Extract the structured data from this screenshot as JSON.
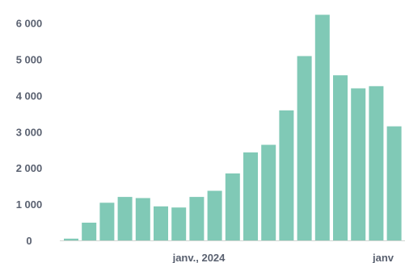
{
  "chart_data": {
    "type": "bar",
    "title": "",
    "xlabel": "",
    "ylabel": "",
    "ylim": [
      0,
      6300
    ],
    "yticks": [
      0,
      1000,
      2000,
      3000,
      4000,
      5000,
      6000
    ],
    "ytick_labels": [
      "0",
      "1 000",
      "2 000",
      "3 000",
      "4 000",
      "5 000",
      "6 000"
    ],
    "xtick_labels": [
      "janv., 2024",
      "janv"
    ],
    "values": [
      50,
      490,
      1040,
      1200,
      1170,
      940,
      910,
      1200,
      1370,
      1850,
      2430,
      2640,
      3590,
      5090,
      6230,
      4560,
      4200,
      4260,
      3150
    ],
    "bar_color": "#80c9b6",
    "axis_color": "#d0d6d2",
    "grid": false
  }
}
